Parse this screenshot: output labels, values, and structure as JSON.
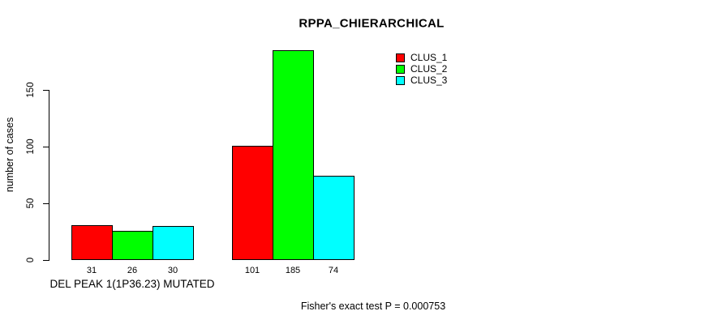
{
  "chart_data": {
    "type": "bar",
    "title": "RPPA_CHIERARCHICAL",
    "ylabel": "number of cases",
    "ylim": [
      0,
      190
    ],
    "yticks": [
      0,
      50,
      100,
      150
    ],
    "grid": false,
    "legend_position": "top-right",
    "categories": [
      "DEL PEAK 1(1P36.23) MUTATED",
      ""
    ],
    "series": [
      {
        "name": "CLUS_1",
        "color": "#ff0000",
        "values": [
          31,
          101
        ]
      },
      {
        "name": "CLUS_2",
        "color": "#00ff00",
        "values": [
          26,
          185
        ]
      },
      {
        "name": "CLUS_3",
        "color": "#00ffff",
        "values": [
          30,
          74
        ]
      }
    ],
    "bar_value_labels_shown": true,
    "axis_color": "#000000",
    "bar_border_color": "#000000",
    "caption": "Fisher's exact test P = 0.000753"
  }
}
